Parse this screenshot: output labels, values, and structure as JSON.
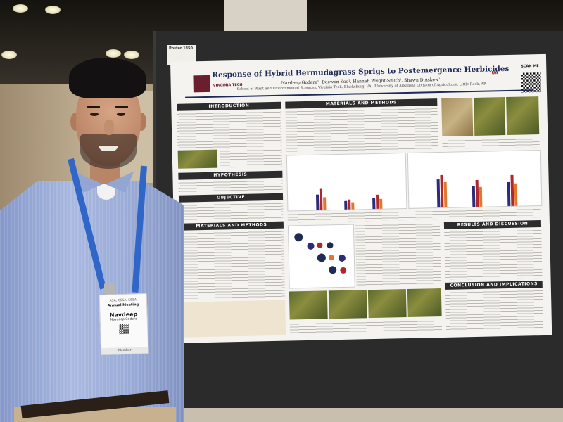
{
  "poster": {
    "board_tag": "Poster 1850",
    "title": "Response of Hybrid Bermudagrass Sprigs to Postemergence Herbicides",
    "authors": "Navdeep Godara¹, Daewon Koo¹, Hannah Wright-Smith², Shawn D Askew¹",
    "affiliation": "¹School of Plant and Environmental Sciences, Virginia Tech, Blacksburg, VA; ²University of Arkansas Division of Agriculture, Little Rock, AR",
    "logo_left": "VIRGINIA TECH",
    "logo_right": "UA",
    "scan_label": "SCAN ME",
    "sections": {
      "introduction": "INTRODUCTION",
      "hypothesis": "HYPOTHESIS",
      "objective": "OBJECTIVE",
      "materials_left": "MATERIALS AND METHODS",
      "materials_top": "MATERIALS AND METHODS",
      "results": "RESULTS AND DISCUSSION",
      "conclusion": "CONCLUSION AND IMPLICATIONS"
    },
    "figure_colors": {
      "series_a": "#2b2b7a",
      "series_b": "#b0262a",
      "series_c": "#e0772b"
    }
  },
  "badge": {
    "org": "ASA, CSSA, SSSA",
    "meeting": "Annual Meeting",
    "name": "Navdeep",
    "full_name": "Navdeep Godara",
    "role": "Member"
  }
}
